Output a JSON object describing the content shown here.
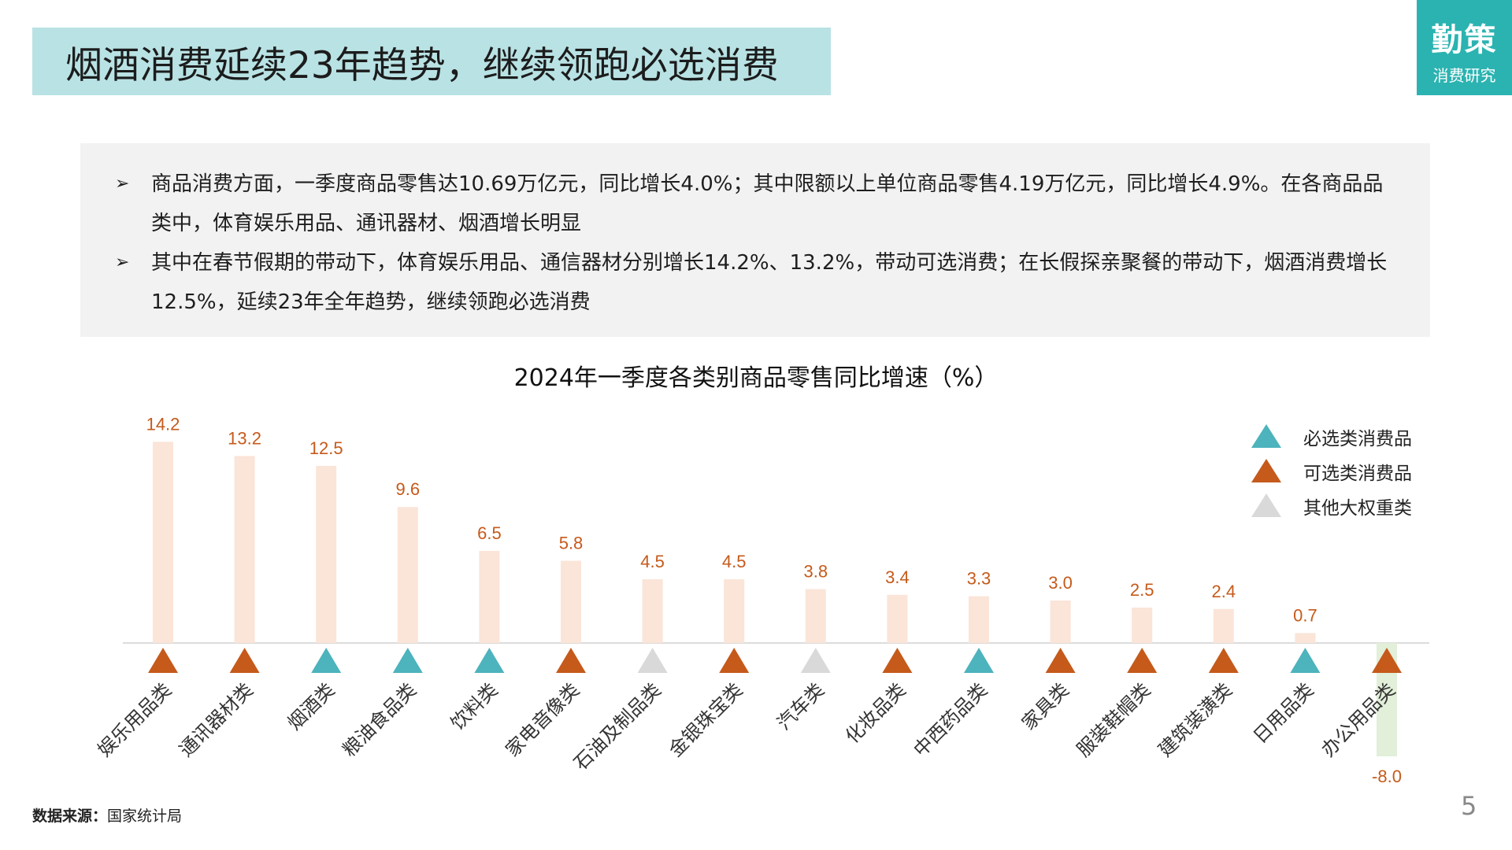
{
  "header": {
    "title": "烟酒消费延续23年趋势，继续领跑必选消费",
    "logo_main": "勤策",
    "logo_sub": "消费研究"
  },
  "bullets": [
    "商品消费方面，一季度商品零售达10.69万亿元，同比增长4.0%；其中限额以上单位商品零售4.19万亿元，同比增长4.9%。在各商品品类中，体育娱乐用品、通讯器材、烟酒增长明显",
    "其中在春节假期的带动下，体育娱乐用品、通信器材分别增长14.2%、13.2%，带动可选消费；在长假探亲聚餐的带动下，烟酒消费增长12.5%，延续23年全年趋势，继续领跑必选消费"
  ],
  "bullet_icon": "arrow-bullet-icon",
  "chart_data": {
    "type": "bar",
    "title": "2024年一季度各类别商品零售同比增速（%）",
    "categories": [
      "娱乐用品类",
      "通讯器材类",
      "烟酒类",
      "粮油食品类",
      "饮料类",
      "家电音像类",
      "石油及制品类",
      "金银珠宝类",
      "汽车类",
      "化妆品类",
      "中西药品类",
      "家具类",
      "服装鞋帽类",
      "建筑装潢类",
      "日用品类",
      "办公用品类"
    ],
    "values": [
      14.2,
      13.2,
      12.5,
      9.6,
      6.5,
      5.8,
      4.5,
      4.5,
      3.8,
      3.4,
      3.3,
      3.0,
      2.5,
      2.4,
      0.7,
      -8.0
    ],
    "value_labels": [
      "14.2",
      "13.2",
      "12.5",
      "9.6",
      "6.5",
      "5.8",
      "4.5",
      "4.5",
      "3.8",
      "3.4",
      "3.3",
      "3.0",
      "2.5",
      "2.4",
      "0.7",
      "-8.0"
    ],
    "groups": [
      "optional",
      "optional",
      "essential",
      "essential",
      "essential",
      "optional",
      "other",
      "optional",
      "other",
      "optional",
      "essential",
      "optional",
      "optional",
      "optional",
      "essential",
      "optional"
    ],
    "legend": [
      {
        "key": "essential",
        "label": "必选类消费品",
        "color": "#4db3bd"
      },
      {
        "key": "optional",
        "label": "可选类消费品",
        "color": "#c55a1b"
      },
      {
        "key": "other",
        "label": "其他大权重类",
        "color": "#d9d9d9"
      }
    ],
    "colors": {
      "positive_bar": "#fbe4d8",
      "negative_bar": "#e2efd9",
      "label": "#c55a1b",
      "axis": "#d0d0d0"
    },
    "legend_position": "top-right",
    "grid": false
  },
  "footer": {
    "source_label": "数据来源：",
    "source_value": "国家统计局",
    "page_number": "5"
  }
}
